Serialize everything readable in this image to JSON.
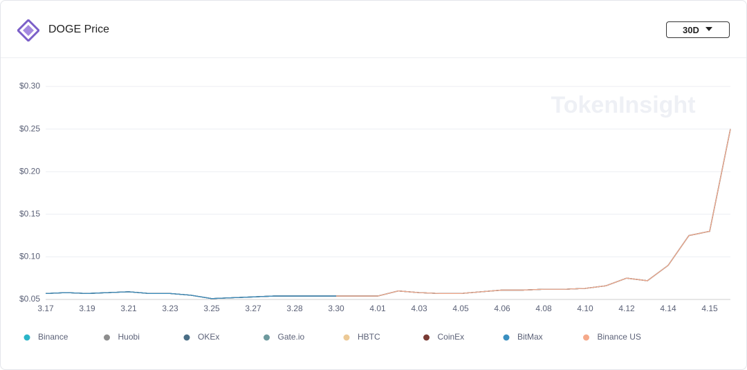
{
  "chart_data": {
    "type": "line",
    "title": "DOGE Price",
    "range_selector": "30D",
    "watermark": "TokenInsight",
    "categories": [
      "3.17",
      null,
      "3.19",
      null,
      "3.21",
      null,
      "3.23",
      null,
      "3.25",
      null,
      "3.27",
      null,
      "3.28",
      null,
      "3.30",
      null,
      "4.01",
      null,
      "4.03",
      null,
      "4.05",
      null,
      "4.06",
      null,
      "4.08",
      null,
      "4.10",
      null,
      "4.12",
      null,
      "4.14",
      null,
      "4.15",
      null
    ],
    "ylim": [
      0.05,
      0.3
    ],
    "yticks": [
      {
        "value": 0.05,
        "label": "$0.05"
      },
      {
        "value": 0.1,
        "label": "$0.10"
      },
      {
        "value": 0.15,
        "label": "$0.15"
      },
      {
        "value": 0.2,
        "label": "$0.20"
      },
      {
        "value": 0.25,
        "label": "$0.25"
      },
      {
        "value": 0.3,
        "label": "$0.30"
      }
    ],
    "grid": true,
    "series": [
      {
        "name": "Binance",
        "color": "#2bb5c8",
        "values": [
          0.057,
          0.058,
          0.057,
          0.058,
          0.059,
          0.057,
          0.057,
          0.055,
          0.051,
          0.052,
          0.053,
          0.054,
          0.054,
          0.054,
          0.054,
          0.054,
          0.054,
          0.06,
          0.058,
          0.057,
          0.057,
          0.059,
          0.061,
          0.061,
          0.062,
          0.062,
          0.063,
          0.066,
          0.075,
          0.072,
          0.09,
          0.125,
          0.13,
          0.25
        ]
      },
      {
        "name": "Huobi",
        "color": "#8e8e8e",
        "values": [
          0.057,
          0.058,
          0.057,
          0.058,
          0.059,
          0.057,
          0.057,
          0.055,
          0.051,
          0.052,
          0.053,
          0.054,
          0.054,
          0.054,
          0.054,
          0.054,
          0.054,
          0.06,
          0.058,
          0.057,
          0.057,
          0.059,
          0.061,
          0.061,
          0.062,
          0.062,
          0.063,
          0.066,
          0.075,
          0.072,
          0.09,
          0.125,
          0.13,
          0.25
        ]
      },
      {
        "name": "OKEx",
        "color": "#4a6e86",
        "values": [
          0.057,
          0.058,
          0.057,
          0.058,
          0.059,
          0.057,
          0.057,
          0.055,
          0.051,
          0.052,
          0.053,
          0.054,
          0.054,
          0.054,
          0.054,
          0.054,
          0.054,
          0.06,
          0.058,
          0.057,
          0.057,
          0.059,
          0.061,
          0.061,
          0.062,
          0.062,
          0.063,
          0.066,
          0.075,
          0.072,
          0.09,
          0.125,
          0.13,
          0.25
        ]
      },
      {
        "name": "Gate.io",
        "color": "#6e9a9e",
        "values": [
          0.057,
          0.058,
          0.057,
          0.058,
          0.059,
          0.057,
          0.057,
          0.055,
          0.051,
          0.052,
          0.053,
          0.054,
          0.054,
          0.054,
          0.054,
          0.054,
          0.054,
          0.06,
          0.058,
          0.057,
          0.057,
          0.059,
          0.061,
          0.061,
          0.062,
          0.062,
          0.063,
          0.066,
          0.075,
          0.072,
          0.09,
          0.125,
          0.13,
          0.25
        ]
      },
      {
        "name": "HBTC",
        "color": "#ecc996",
        "values": [
          null,
          null,
          null,
          null,
          null,
          null,
          null,
          null,
          null,
          null,
          null,
          null,
          null,
          null,
          0.054,
          0.054,
          0.054,
          0.06,
          0.058,
          0.057,
          0.057,
          0.059,
          0.061,
          0.061,
          0.062,
          0.062,
          0.063,
          0.066,
          0.075,
          0.072,
          0.09,
          0.125,
          0.13,
          0.25
        ]
      },
      {
        "name": "CoinEx",
        "color": "#7a3b35",
        "values": [
          0.057,
          0.058,
          0.057,
          0.058,
          0.059,
          0.057,
          0.057,
          0.055,
          0.051,
          0.052,
          0.053,
          0.054,
          0.054,
          0.054,
          0.054,
          0.054,
          0.054,
          0.06,
          0.058,
          0.057,
          0.057,
          0.059,
          0.061,
          0.061,
          0.062,
          0.062,
          0.063,
          0.066,
          0.075,
          0.072,
          0.09,
          0.125,
          0.13,
          0.25
        ]
      },
      {
        "name": "BitMax",
        "color": "#3a8fc0",
        "values": [
          0.057,
          0.058,
          0.057,
          0.058,
          0.059,
          0.057,
          0.057,
          0.055,
          0.051,
          0.052,
          0.053,
          0.054,
          0.054,
          0.054,
          0.054,
          0.054,
          0.054,
          0.06,
          0.058,
          0.057,
          0.057,
          0.059,
          0.061,
          0.061,
          0.062,
          0.062,
          0.063,
          0.066,
          0.075,
          0.072,
          0.09,
          0.125,
          0.13,
          0.25
        ]
      },
      {
        "name": "Binance US",
        "color": "#f5a98a",
        "values": [
          null,
          null,
          null,
          null,
          null,
          null,
          null,
          null,
          null,
          null,
          null,
          null,
          null,
          null,
          0.054,
          0.054,
          0.054,
          0.06,
          0.058,
          0.057,
          0.057,
          0.059,
          0.061,
          0.061,
          0.062,
          0.062,
          0.063,
          0.066,
          0.075,
          0.072,
          0.09,
          0.125,
          0.13,
          0.25
        ]
      }
    ]
  }
}
